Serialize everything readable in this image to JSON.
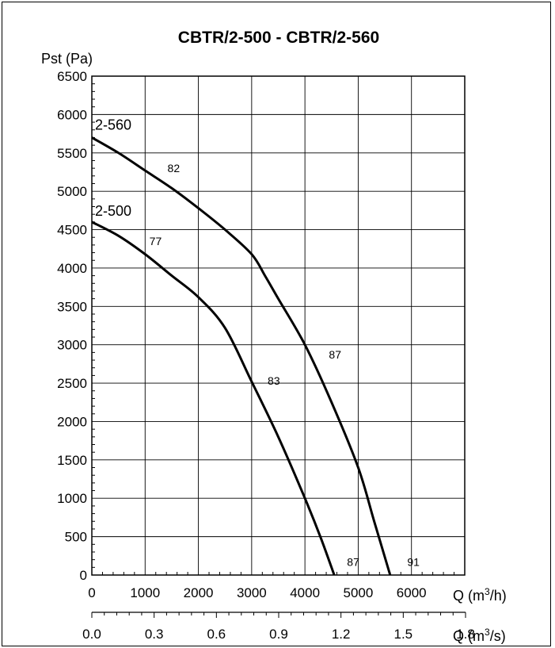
{
  "chart_data": {
    "type": "line",
    "title": "CBTR/2-500 - CBTR/2-560",
    "ylabel": "Pst (Pa)",
    "xlabel": "Q (m³/h)",
    "xlabel_parts": {
      "prefix": "Q (m",
      "sup": "3",
      "suffix": "/h)"
    },
    "x2label": "Q (m³/s)",
    "x2label_parts": {
      "prefix": "Q (m",
      "sup": "3",
      "suffix": "/s)"
    },
    "xlim": [
      0,
      7000
    ],
    "ylim": [
      0,
      6500
    ],
    "grid": true,
    "y_ticks": [
      "0",
      "500",
      "1000",
      "1500",
      "2000",
      "2500",
      "3000",
      "3500",
      "4000",
      "4500",
      "5000",
      "5500",
      "6000",
      "6500"
    ],
    "x_ticks": [
      "0",
      "1000",
      "2000",
      "3000",
      "4000",
      "5000",
      "6000"
    ],
    "x2_ticks": [
      "0.0",
      "0.3",
      "0.6",
      "0.9",
      "1.2",
      "1.5",
      "1.8"
    ],
    "series": [
      {
        "name": "2-560",
        "x": [
          0,
          500,
          1000,
          1500,
          2000,
          2500,
          3000,
          3250,
          3500,
          4000,
          4500,
          5000,
          5300,
          5600
        ],
        "y": [
          5700,
          5500,
          5270,
          5040,
          4780,
          4500,
          4180,
          3900,
          3600,
          3000,
          2250,
          1400,
          700,
          0
        ],
        "efficiency_labels": [
          {
            "text": "82",
            "x": 1420,
            "y": 5250
          },
          {
            "text": "87",
            "x": 4450,
            "y": 2820
          },
          {
            "text": "91",
            "x": 5920,
            "y": 120
          }
        ]
      },
      {
        "name": "2-500",
        "x": [
          0,
          500,
          1000,
          1500,
          2000,
          2500,
          3000,
          3500,
          4000,
          4300,
          4550
        ],
        "y": [
          4600,
          4420,
          4180,
          3900,
          3620,
          3220,
          2520,
          1800,
          1000,
          480,
          0
        ],
        "efficiency_labels": [
          {
            "text": "77",
            "x": 1080,
            "y": 4300
          },
          {
            "text": "83",
            "x": 3300,
            "y": 2480
          },
          {
            "text": "87",
            "x": 4790,
            "y": 120
          }
        ]
      }
    ]
  }
}
